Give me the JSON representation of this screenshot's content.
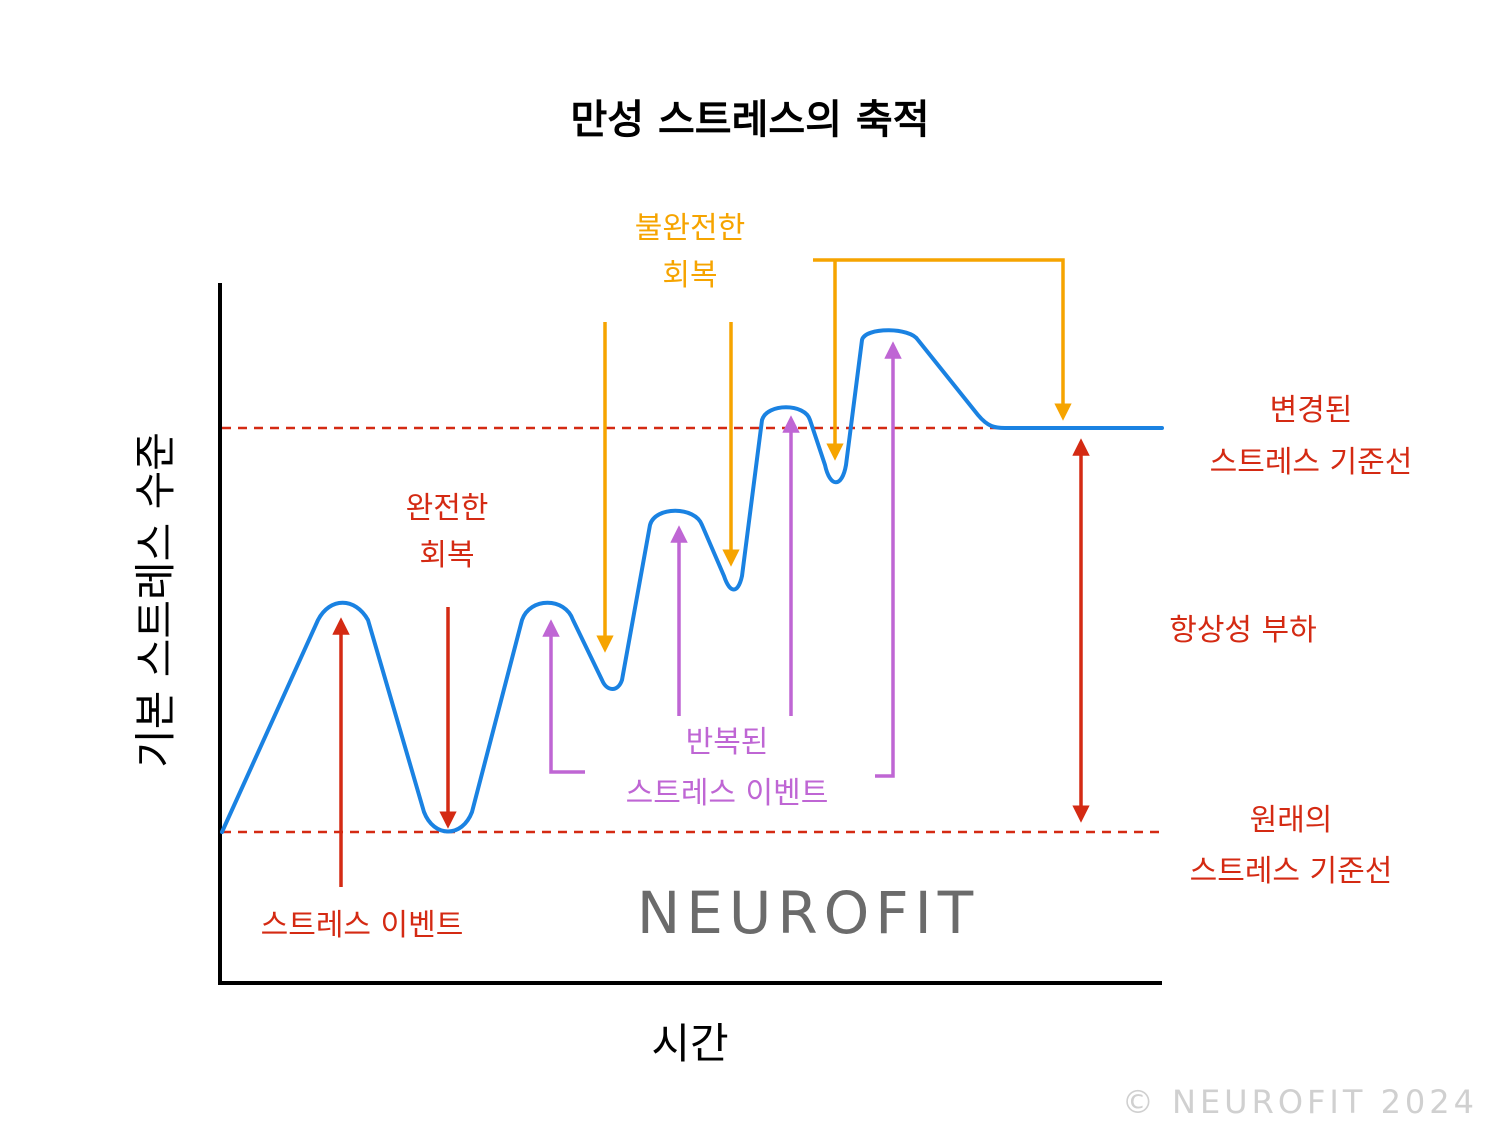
{
  "title": "만성 스트레스의 축적",
  "axes": {
    "x_label": "시간",
    "y_label": "기본 스트레스 수준"
  },
  "labels": {
    "stress_event": "스트레스 이벤트",
    "full_recovery_line1": "완전한",
    "full_recovery_line2": "회복",
    "incomplete_recovery_line1": "불완전한",
    "incomplete_recovery_line2": "회복",
    "repeated_events_line1": "반복된",
    "repeated_events_line2": "스트레스 이벤트",
    "changed_baseline_line1": "변경된",
    "changed_baseline_line2": "스트레스 기준선",
    "allostatic_load": "항상성 부하",
    "original_baseline_line1": "원래의",
    "original_baseline_line2": "스트레스 기준선"
  },
  "brand": "NEUROFIT",
  "copyright": "© NEUROFIT 2024",
  "colors": {
    "curve": "#1a82e2",
    "red": "#d42a13",
    "orange": "#f6a400",
    "purple": "#bf66d4",
    "axis": "#000000",
    "brand": "#6b6b6b"
  }
}
